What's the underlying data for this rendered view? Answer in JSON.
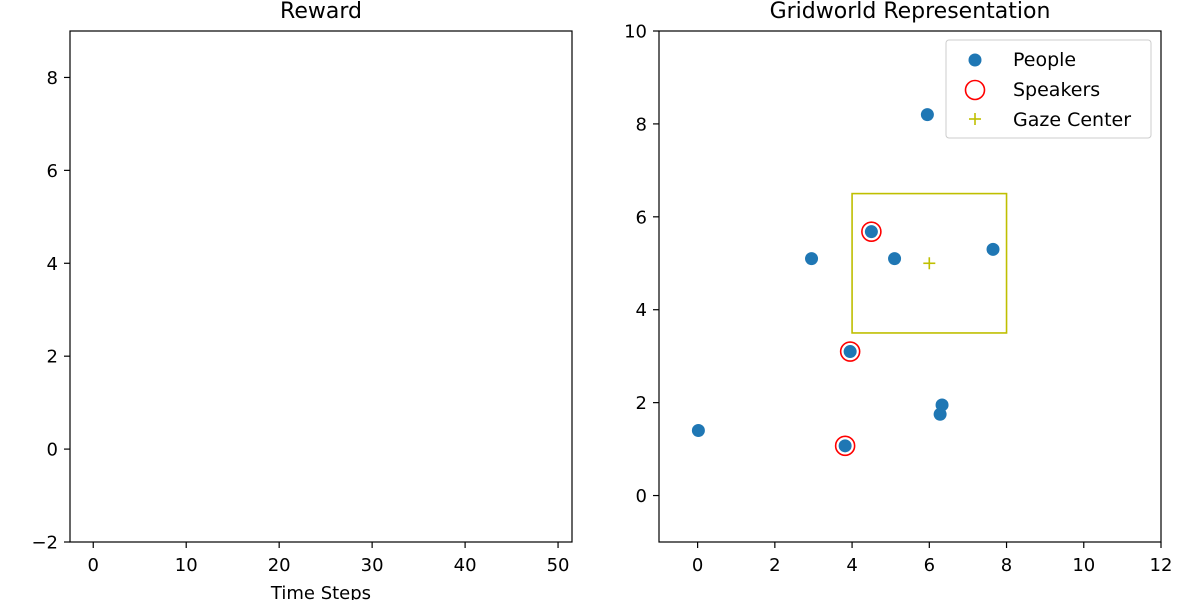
{
  "chart_data": [
    {
      "type": "line",
      "title": "Reward",
      "xlabel": "Time Steps",
      "ylabel": "",
      "xlim": [
        -2.5,
        51.5
      ],
      "ylim": [
        -2,
        9
      ],
      "xticks": [
        "0",
        "10",
        "20",
        "30",
        "40",
        "50"
      ],
      "yticks": [
        "−2",
        "0",
        "2",
        "4",
        "6",
        "8"
      ],
      "series": [],
      "grid": false
    },
    {
      "type": "scatter",
      "title": "Gridworld Representation",
      "xlabel": "",
      "ylabel": "",
      "xlim": [
        -1,
        12
      ],
      "ylim": [
        -1,
        10
      ],
      "xticks": [
        "0",
        "2",
        "4",
        "6",
        "8",
        "10",
        "12"
      ],
      "yticks": [
        "0",
        "2",
        "4",
        "6",
        "8",
        "10"
      ],
      "grid": false,
      "legend_position": "top-right",
      "colors": {
        "people": "#1f77b4",
        "speakers": "#ff0000",
        "gaze": "#bfbf00"
      },
      "series": [
        {
          "name": "People",
          "points": [
            [
              5.95,
              8.2
            ],
            [
              4.5,
              5.68
            ],
            [
              2.95,
              5.1
            ],
            [
              5.1,
              5.1
            ],
            [
              7.65,
              5.3
            ],
            [
              3.95,
              3.1
            ],
            [
              6.33,
              1.95
            ],
            [
              6.28,
              1.75
            ],
            [
              0.02,
              1.4
            ],
            [
              3.82,
              1.07
            ]
          ]
        },
        {
          "name": "Speakers",
          "points": [
            [
              4.5,
              5.68
            ],
            [
              3.95,
              3.1
            ],
            [
              3.82,
              1.07
            ]
          ]
        },
        {
          "name": "Gaze Center",
          "points": [
            [
              6.0,
              5.0
            ]
          ]
        }
      ],
      "gaze_box": {
        "x0": 4,
        "x1": 8,
        "y0": 3.5,
        "y1": 6.5
      }
    }
  ]
}
